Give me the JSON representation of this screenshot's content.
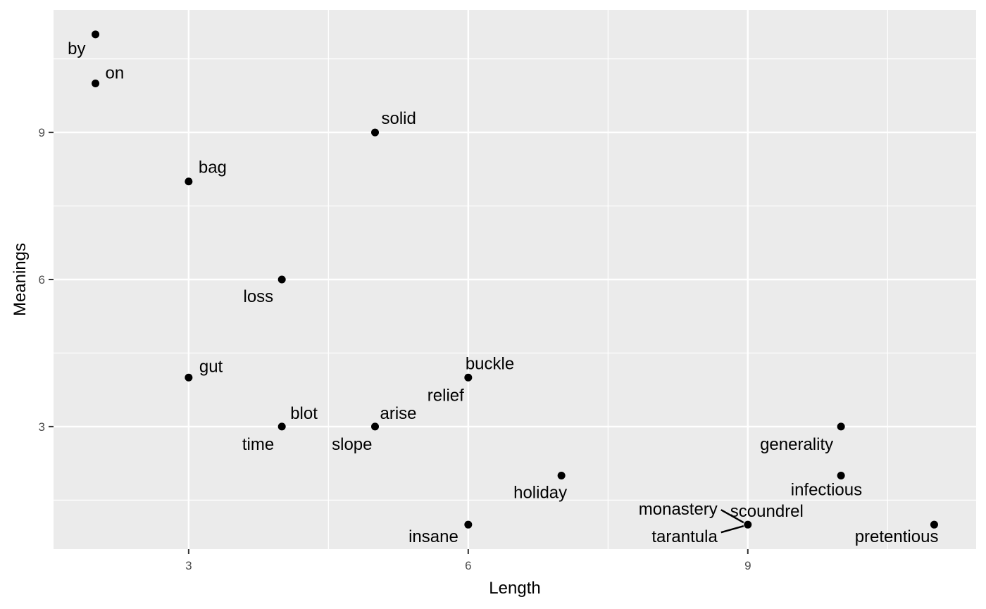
{
  "chart_data": {
    "type": "scatter",
    "title": "",
    "xlabel": "Length",
    "ylabel": "Meanings",
    "xlim": [
      1.55,
      11.45
    ],
    "ylim": [
      0.5,
      11.5
    ],
    "x_ticks": [
      3,
      6,
      9
    ],
    "y_ticks": [
      3,
      6,
      9
    ],
    "x_tick_labels": [
      "3",
      "6",
      "9"
    ],
    "y_tick_labels": [
      "3",
      "6",
      "9"
    ],
    "grid": true,
    "colors": {
      "panel": "#ebebeb",
      "grid": "#ffffff",
      "point": "#000000",
      "tick": "#333333"
    },
    "points": [
      {
        "word": "by",
        "x": 2,
        "y": 11
      },
      {
        "word": "on",
        "x": 2,
        "y": 10
      },
      {
        "word": "solid",
        "x": 5,
        "y": 9
      },
      {
        "word": "bag",
        "x": 3,
        "y": 8
      },
      {
        "word": "loss",
        "x": 4,
        "y": 6
      },
      {
        "word": "gut",
        "x": 3,
        "y": 4
      },
      {
        "word": "buckle",
        "x": 6,
        "y": 4
      },
      {
        "word": "relief",
        "x": 6,
        "y": 4
      },
      {
        "word": "blot",
        "x": 4,
        "y": 3
      },
      {
        "word": "time",
        "x": 4,
        "y": 3
      },
      {
        "word": "arise",
        "x": 5,
        "y": 3
      },
      {
        "word": "slope",
        "x": 5,
        "y": 3
      },
      {
        "word": "generality",
        "x": 10,
        "y": 3
      },
      {
        "word": "holiday",
        "x": 7,
        "y": 2
      },
      {
        "word": "infectious",
        "x": 10,
        "y": 2
      },
      {
        "word": "insane",
        "x": 6,
        "y": 1
      },
      {
        "word": "monastery",
        "x": 9,
        "y": 1
      },
      {
        "word": "scoundrel",
        "x": 9,
        "y": 1
      },
      {
        "word": "tarantula",
        "x": 9,
        "y": 1
      },
      {
        "word": "pretentious",
        "x": 11,
        "y": 1
      }
    ]
  }
}
